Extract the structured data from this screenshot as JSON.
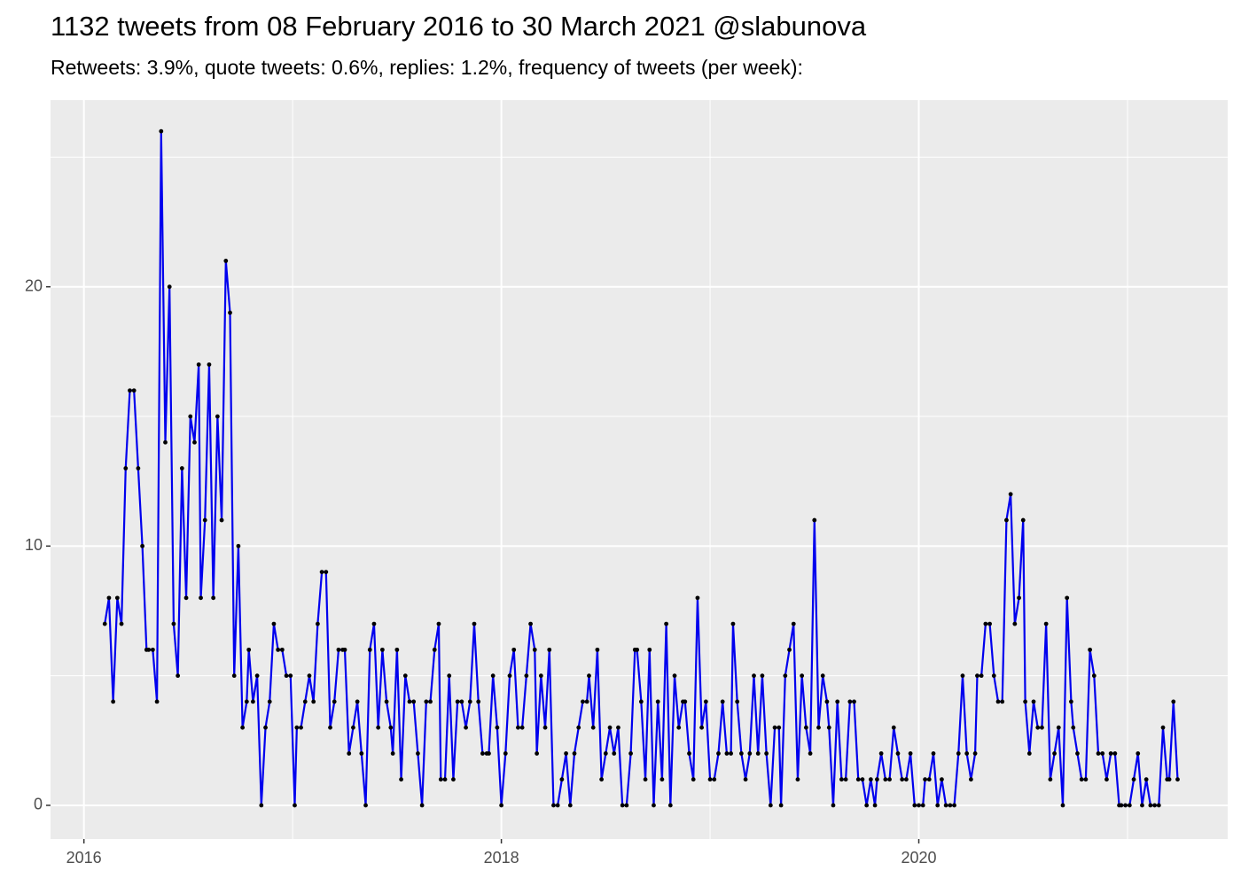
{
  "chart_data": {
    "type": "line",
    "title": "1132 tweets from 08 February 2016 to 30 March 2021 @slabunova",
    "subtitle": "Retweets: 3.9%, quote tweets: 0.6%, replies: 1.2%, frequency of tweets (per week):",
    "x": [
      2016.1,
      2016.12,
      2016.14,
      2016.16,
      2016.18,
      2016.2,
      2016.22,
      2016.24,
      2016.26,
      2016.28,
      2016.3,
      2016.31,
      2016.33,
      2016.35,
      2016.37,
      2016.39,
      2016.41,
      2016.43,
      2016.45,
      2016.47,
      2016.49,
      2016.51,
      2016.53,
      2016.55,
      2016.56,
      2016.58,
      2016.6,
      2016.62,
      2016.64,
      2016.66,
      2016.68,
      2016.7,
      2016.72,
      2016.74,
      2016.76,
      2016.78,
      2016.79,
      2016.81,
      2016.83,
      2016.85,
      2016.87,
      2016.89,
      2016.91,
      2016.93,
      2016.95,
      2016.97,
      2016.99,
      2017.01,
      2017.02,
      2017.04,
      2017.06,
      2017.08,
      2017.1,
      2017.12,
      2017.14,
      2017.16,
      2017.18,
      2017.2,
      2017.22,
      2017.24,
      2017.25,
      2017.27,
      2017.29,
      2017.31,
      2017.33,
      2017.35,
      2017.37,
      2017.39,
      2017.41,
      2017.43,
      2017.45,
      2017.47,
      2017.48,
      2017.5,
      2017.52,
      2017.54,
      2017.56,
      2017.58,
      2017.6,
      2017.62,
      2017.64,
      2017.66,
      2017.68,
      2017.7,
      2017.71,
      2017.73,
      2017.75,
      2017.77,
      2017.79,
      2017.81,
      2017.83,
      2017.85,
      2017.87,
      2017.89,
      2017.91,
      2017.93,
      2017.94,
      2017.96,
      2017.98,
      2018.0,
      2018.02,
      2018.04,
      2018.06,
      2018.08,
      2018.1,
      2018.12,
      2018.14,
      2018.16,
      2018.17,
      2018.19,
      2018.21,
      2018.23,
      2018.25,
      2018.27,
      2018.29,
      2018.31,
      2018.33,
      2018.35,
      2018.37,
      2018.39,
      2018.41,
      2018.42,
      2018.44,
      2018.46,
      2018.48,
      2018.5,
      2018.52,
      2018.54,
      2018.56,
      2018.58,
      2018.6,
      2018.62,
      2018.64,
      2018.65,
      2018.67,
      2018.69,
      2018.71,
      2018.73,
      2018.75,
      2018.77,
      2018.79,
      2018.81,
      2018.83,
      2018.85,
      2018.87,
      2018.88,
      2018.9,
      2018.92,
      2018.94,
      2018.96,
      2018.98,
      2019.0,
      2019.02,
      2019.04,
      2019.06,
      2019.08,
      2019.1,
      2019.11,
      2019.13,
      2019.15,
      2019.17,
      2019.19,
      2019.21,
      2019.23,
      2019.25,
      2019.27,
      2019.29,
      2019.31,
      2019.33,
      2019.34,
      2019.36,
      2019.38,
      2019.4,
      2019.42,
      2019.44,
      2019.46,
      2019.48,
      2019.5,
      2019.52,
      2019.54,
      2019.56,
      2019.57,
      2019.59,
      2019.61,
      2019.63,
      2019.65,
      2019.67,
      2019.69,
      2019.71,
      2019.73,
      2019.75,
      2019.77,
      2019.79,
      2019.8,
      2019.82,
      2019.84,
      2019.86,
      2019.88,
      2019.9,
      2019.92,
      2019.94,
      2019.96,
      2019.98,
      2020.0,
      2020.02,
      2020.03,
      2020.05,
      2020.07,
      2020.09,
      2020.11,
      2020.13,
      2020.15,
      2020.17,
      2020.19,
      2020.21,
      2020.23,
      2020.25,
      2020.27,
      2020.28,
      2020.3,
      2020.32,
      2020.34,
      2020.36,
      2020.38,
      2020.4,
      2020.42,
      2020.44,
      2020.46,
      2020.48,
      2020.5,
      2020.51,
      2020.53,
      2020.55,
      2020.57,
      2020.59,
      2020.61,
      2020.63,
      2020.65,
      2020.67,
      2020.69,
      2020.71,
      2020.73,
      2020.74,
      2020.76,
      2020.78,
      2020.8,
      2020.82,
      2020.84,
      2020.86,
      2020.88,
      2020.9,
      2020.92,
      2020.94,
      2020.96,
      2020.97,
      2020.99,
      2021.01,
      2021.03,
      2021.05,
      2021.07,
      2021.09,
      2021.11,
      2021.13,
      2021.15,
      2021.17,
      2021.19,
      2021.2,
      2021.22,
      2021.24
    ],
    "series": [
      {
        "color": "#0000ee",
        "point_color": "#000000",
        "values": [
          7,
          8,
          4,
          8,
          7,
          13,
          16,
          16,
          13,
          10,
          6,
          6,
          6,
          4,
          26,
          14,
          20,
          7,
          5,
          13,
          8,
          15,
          14,
          17,
          8,
          11,
          17,
          8,
          15,
          11,
          21,
          19,
          5,
          10,
          3,
          4,
          6,
          4,
          5,
          0,
          3,
          4,
          7,
          6,
          6,
          5,
          5,
          0,
          3,
          3,
          4,
          5,
          4,
          7,
          9,
          9,
          3,
          4,
          6,
          6,
          6,
          2,
          3,
          4,
          2,
          0,
          6,
          7,
          3,
          6,
          4,
          3,
          2,
          6,
          1,
          5,
          4,
          4,
          2,
          0,
          4,
          4,
          6,
          7,
          1,
          1,
          5,
          1,
          4,
          4,
          3,
          4,
          7,
          4,
          2,
          2,
          2,
          5,
          3,
          0,
          2,
          5,
          6,
          3,
          3,
          5,
          7,
          6,
          2,
          5,
          3,
          6,
          0,
          0,
          1,
          2,
          0,
          2,
          3,
          4,
          4,
          5,
          3,
          6,
          1,
          2,
          3,
          2,
          3,
          0,
          0,
          2,
          6,
          6,
          4,
          1,
          6,
          0,
          4,
          1,
          7,
          0,
          5,
          3,
          4,
          4,
          2,
          1,
          8,
          3,
          4,
          1,
          1,
          2,
          4,
          2,
          2,
          7,
          4,
          2,
          1,
          2,
          5,
          2,
          5,
          2,
          0,
          3,
          3,
          0,
          5,
          6,
          7,
          1,
          5,
          3,
          2,
          11,
          3,
          5,
          4,
          3,
          0,
          4,
          1,
          1,
          4,
          4,
          1,
          1,
          0,
          1,
          0,
          1,
          2,
          1,
          1,
          3,
          2,
          1,
          1,
          2,
          0,
          0,
          0,
          1,
          1,
          2,
          0,
          1,
          0,
          0,
          0,
          2,
          5,
          2,
          1,
          2,
          5,
          5,
          7,
          7,
          5,
          4,
          4,
          11,
          12,
          7,
          8,
          11,
          4,
          2,
          4,
          3,
          3,
          7,
          1,
          2,
          3,
          0,
          8,
          4,
          3,
          2,
          1,
          1,
          6,
          5,
          2,
          2,
          1,
          2,
          2,
          0,
          0,
          0,
          0,
          1,
          2,
          0,
          1,
          0,
          0,
          0,
          3,
          1,
          1,
          4,
          1
        ]
      }
    ],
    "xlim": [
      2015.84,
      2021.48
    ],
    "xticks": [
      2016,
      2018,
      2020
    ],
    "xminor": [
      2017,
      2019,
      2021
    ],
    "ylim": [
      -1.3,
      27.2
    ],
    "yticks": [
      0,
      10,
      20
    ],
    "yminor": [
      5,
      15,
      25
    ],
    "grid": true
  }
}
